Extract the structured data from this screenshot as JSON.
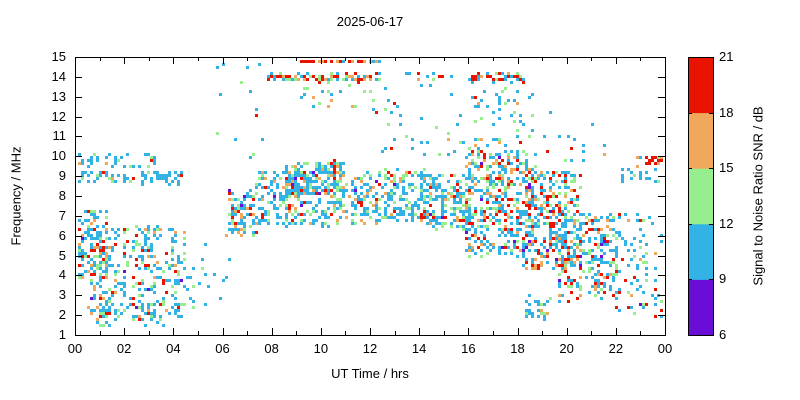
{
  "chart_data": {
    "type": "scatter",
    "title": "2025-06-17",
    "xlabel": "UT Time / hrs",
    "ylabel": "Frequency / MHz",
    "xlim": [
      0,
      24
    ],
    "ylim": [
      1,
      15
    ],
    "grid": false,
    "background": "#ffffff",
    "frame_color": "#000000",
    "point_size": 3,
    "seed": 20250617,
    "x_ticks": [
      {
        "v": 0,
        "label": "00"
      },
      {
        "v": 2,
        "label": "02"
      },
      {
        "v": 4,
        "label": "04"
      },
      {
        "v": 6,
        "label": "06"
      },
      {
        "v": 8,
        "label": "08"
      },
      {
        "v": 10,
        "label": "10"
      },
      {
        "v": 12,
        "label": "12"
      },
      {
        "v": 14,
        "label": "14"
      },
      {
        "v": 16,
        "label": "16"
      },
      {
        "v": 18,
        "label": "18"
      },
      {
        "v": 20,
        "label": "20"
      },
      {
        "v": 22,
        "label": "22"
      },
      {
        "v": 24,
        "label": "00"
      }
    ],
    "x_minor_ticks": [
      1,
      3,
      5,
      7,
      9,
      11,
      13,
      15,
      17,
      19,
      21,
      23
    ],
    "y_ticks": [
      {
        "v": 1,
        "label": "1"
      },
      {
        "v": 2,
        "label": "2"
      },
      {
        "v": 3,
        "label": "3"
      },
      {
        "v": 4,
        "label": "4"
      },
      {
        "v": 5,
        "label": "5"
      },
      {
        "v": 6,
        "label": "6"
      },
      {
        "v": 7,
        "label": "7"
      },
      {
        "v": 8,
        "label": "8"
      },
      {
        "v": 9,
        "label": "9"
      },
      {
        "v": 10,
        "label": "10"
      },
      {
        "v": 11,
        "label": "11"
      },
      {
        "v": 12,
        "label": "12"
      },
      {
        "v": 13,
        "label": "13"
      },
      {
        "v": 14,
        "label": "14"
      },
      {
        "v": 15,
        "label": "15"
      }
    ],
    "colorbar": {
      "title": "Signal to Noise Ratio SNR / dB",
      "min": 6,
      "max": 21,
      "ticks": [
        6,
        9,
        12,
        15,
        18,
        21
      ],
      "levels": [
        {
          "range": [
            6,
            9
          ],
          "color": "#6a0dd6"
        },
        {
          "range": [
            9,
            12
          ],
          "color": "#33b2e6"
        },
        {
          "range": [
            12,
            15
          ],
          "color": "#97ee8f"
        },
        {
          "range": [
            15,
            18
          ],
          "color": "#f0a85c"
        },
        {
          "range": [
            18,
            21
          ],
          "color": "#e81400"
        }
      ]
    },
    "clusters": [
      {
        "t": [
          0.0,
          1.3
        ],
        "f": [
          4.0,
          7.4
        ],
        "n": 130,
        "w": [
          0.02,
          0.55,
          0.18,
          0.12,
          0.13
        ]
      },
      {
        "t": [
          0.5,
          4.4
        ],
        "f": [
          1.9,
          6.6
        ],
        "n": 330,
        "w": [
          0.03,
          0.56,
          0.18,
          0.11,
          0.12
        ]
      },
      {
        "t": [
          0.0,
          4.3
        ],
        "f": [
          8.7,
          9.3
        ],
        "n": 70,
        "w": [
          0.01,
          0.82,
          0.11,
          0.04,
          0.02
        ]
      },
      {
        "t": [
          0.0,
          3.2
        ],
        "f": [
          9.5,
          10.2
        ],
        "n": 40,
        "w": [
          0.01,
          0.8,
          0.13,
          0.04,
          0.02
        ]
      },
      {
        "t": [
          4.4,
          6.2
        ],
        "f": [
          2.2,
          6.2
        ],
        "n": 22,
        "w": [
          0.02,
          0.7,
          0.18,
          0.06,
          0.04
        ]
      },
      {
        "t": [
          6.2,
          7.3
        ],
        "f": [
          6.1,
          8.4
        ],
        "n": 90,
        "w": [
          0.02,
          0.52,
          0.26,
          0.14,
          0.06
        ]
      },
      {
        "t": [
          5.6,
          7.6
        ],
        "f": [
          9.6,
          14.7
        ],
        "n": 14,
        "w": [
          0.0,
          0.75,
          0.15,
          0.05,
          0.05
        ]
      },
      {
        "t": [
          7.3,
          12.3
        ],
        "f": [
          6.6,
          9.3
        ],
        "n": 310,
        "w": [
          0.02,
          0.58,
          0.21,
          0.12,
          0.07
        ]
      },
      {
        "t": [
          8.5,
          10.9
        ],
        "f": [
          8.1,
          9.8
        ],
        "n": 210,
        "w": [
          0.01,
          0.55,
          0.23,
          0.13,
          0.08
        ]
      },
      {
        "t": [
          7.8,
          12.4
        ],
        "f": [
          13.85,
          14.2
        ],
        "n": 90,
        "w": [
          0.0,
          0.25,
          0.13,
          0.2,
          0.42
        ]
      },
      {
        "t": [
          8.8,
          12.5
        ],
        "f": [
          14.8,
          15.05
        ],
        "n": 75,
        "w": [
          0.0,
          0.18,
          0.1,
          0.22,
          0.5
        ]
      },
      {
        "t": [
          9.0,
          12.6
        ],
        "f": [
          12.3,
          13.7
        ],
        "n": 24,
        "w": [
          0.0,
          0.62,
          0.18,
          0.1,
          0.1
        ]
      },
      {
        "t": [
          12.2,
          14.3
        ],
        "f": [
          6.8,
          9.4
        ],
        "n": 150,
        "w": [
          0.02,
          0.62,
          0.2,
          0.09,
          0.07
        ]
      },
      {
        "t": [
          12.3,
          15.8
        ],
        "f": [
          10.0,
          13.3
        ],
        "n": 30,
        "w": [
          0.0,
          0.72,
          0.14,
          0.07,
          0.07
        ]
      },
      {
        "t": [
          13.4,
          15.3
        ],
        "f": [
          13.5,
          14.3
        ],
        "n": 12,
        "w": [
          0.0,
          0.55,
          0.15,
          0.1,
          0.2
        ]
      },
      {
        "t": [
          14.0,
          16.1
        ],
        "f": [
          6.4,
          9.2
        ],
        "n": 190,
        "w": [
          0.02,
          0.6,
          0.21,
          0.1,
          0.07
        ]
      },
      {
        "t": [
          15.8,
          18.6
        ],
        "f": [
          5.0,
          10.3
        ],
        "n": 430,
        "w": [
          0.02,
          0.49,
          0.18,
          0.13,
          0.18
        ]
      },
      {
        "t": [
          16.0,
          18.6
        ],
        "f": [
          10.3,
          13.7
        ],
        "n": 55,
        "w": [
          0.0,
          0.68,
          0.14,
          0.09,
          0.09
        ]
      },
      {
        "t": [
          15.9,
          18.3
        ],
        "f": [
          13.8,
          14.25
        ],
        "n": 40,
        "w": [
          0.0,
          0.3,
          0.1,
          0.18,
          0.42
        ]
      },
      {
        "t": [
          18.2,
          20.6
        ],
        "f": [
          4.4,
          9.3
        ],
        "n": 310,
        "w": [
          0.02,
          0.42,
          0.16,
          0.14,
          0.26
        ]
      },
      {
        "t": [
          19.5,
          22.1
        ],
        "f": [
          2.8,
          7.2
        ],
        "n": 240,
        "w": [
          0.03,
          0.48,
          0.17,
          0.13,
          0.19
        ]
      },
      {
        "t": [
          18.3,
          19.4
        ],
        "f": [
          1.9,
          3.2
        ],
        "n": 28,
        "w": [
          0.02,
          0.6,
          0.22,
          0.08,
          0.08
        ]
      },
      {
        "t": [
          18.6,
          21.6
        ],
        "f": [
          9.4,
          12.4
        ],
        "n": 18,
        "w": [
          0.0,
          0.72,
          0.14,
          0.07,
          0.07
        ]
      },
      {
        "t": [
          21.8,
          24.0
        ],
        "f": [
          2.0,
          7.2
        ],
        "n": 90,
        "w": [
          0.02,
          0.58,
          0.2,
          0.09,
          0.11
        ]
      },
      {
        "t": [
          22.8,
          24.0
        ],
        "f": [
          9.6,
          10.1
        ],
        "n": 26,
        "w": [
          0.0,
          0.15,
          0.08,
          0.27,
          0.5
        ]
      },
      {
        "t": [
          22.0,
          24.0
        ],
        "f": [
          8.7,
          9.5
        ],
        "n": 20,
        "w": [
          0.0,
          0.75,
          0.13,
          0.06,
          0.06
        ]
      },
      {
        "t": [
          0.8,
          3.6
        ],
        "f": [
          1.5,
          2.7
        ],
        "n": 40,
        "w": [
          0.04,
          0.56,
          0.22,
          0.09,
          0.09
        ]
      }
    ]
  }
}
